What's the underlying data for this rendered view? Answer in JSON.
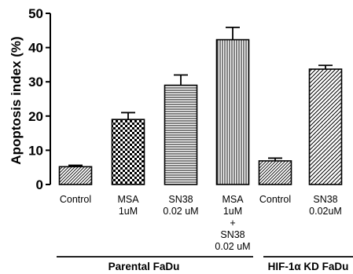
{
  "chart_data": {
    "type": "bar",
    "ylabel": "Apoptosis index (%)",
    "ylim": [
      0,
      50
    ],
    "yticks": [
      "0",
      "10",
      "20",
      "30",
      "40",
      "50"
    ],
    "grid": false,
    "categories": [
      [
        "Control"
      ],
      [
        "MSA",
        "1uM"
      ],
      [
        "SN38",
        "0.02 uM"
      ],
      [
        "MSA",
        "1uM",
        "+",
        "SN38",
        "0.02 uM"
      ],
      [
        "Control"
      ],
      [
        "SN38",
        "0.02uM"
      ]
    ],
    "values": [
      5.2,
      19.0,
      29.0,
      42.3,
      6.9,
      33.7
    ],
    "errors": [
      0.4,
      2.0,
      3.0,
      3.6,
      0.8,
      1.1
    ],
    "patterns": [
      "diag-fine-back",
      "checker",
      "horizontal",
      "vertical",
      "diag-fine-back",
      "diag-wide-back"
    ],
    "groups": [
      {
        "label": "Parental FaDu",
        "bars": [
          0,
          1,
          2,
          3
        ]
      },
      {
        "label": "HIF-1α KD FaDu",
        "bars": [
          4,
          5
        ]
      }
    ]
  }
}
